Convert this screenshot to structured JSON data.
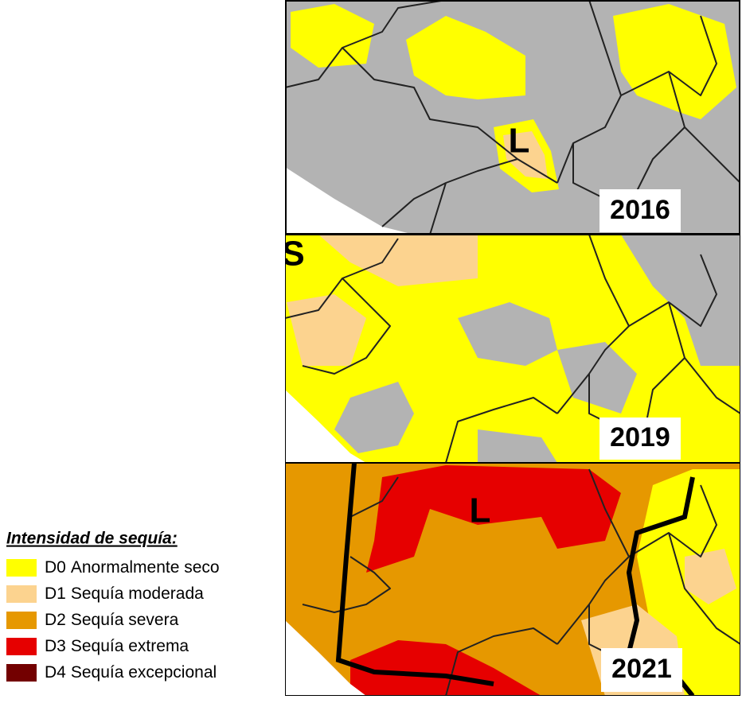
{
  "legend": {
    "title": "Intensidad de sequía:",
    "items": [
      {
        "code": "D0",
        "label": "Anormalmente seco",
        "color": "#ffff00"
      },
      {
        "code": "D1",
        "label": "Sequía moderada",
        "color": "#fcd38f"
      },
      {
        "code": "D2",
        "label": "Sequía severa",
        "color": "#e69800"
      },
      {
        "code": "D3",
        "label": "Sequía extrema",
        "color": "#e60000"
      },
      {
        "code": "D4",
        "label": "Sequía excepcional",
        "color": "#730000"
      }
    ]
  },
  "panels": [
    {
      "year": "2016",
      "labels": [
        "L"
      ]
    },
    {
      "year": "2019",
      "labels": [
        "S"
      ]
    },
    {
      "year": "2021",
      "labels": [
        "L"
      ]
    }
  ]
}
